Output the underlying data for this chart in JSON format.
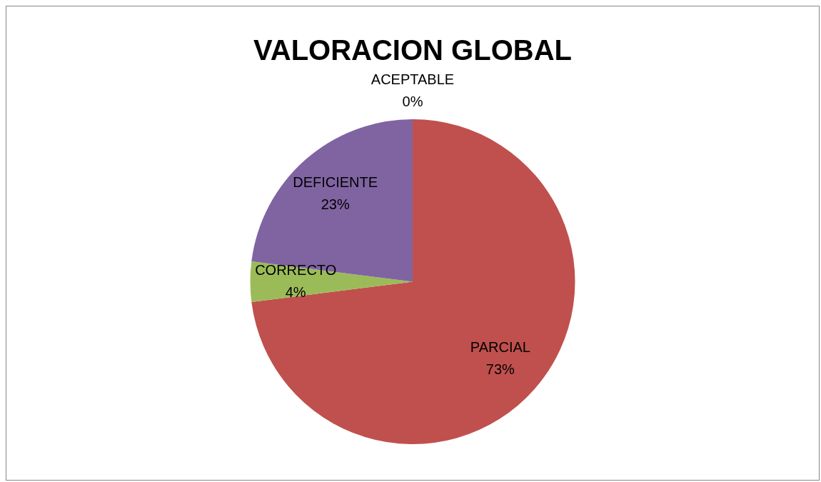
{
  "chart_data": {
    "type": "pie",
    "title": "VALORACION GLOBAL",
    "categories": [
      "ACEPTABLE",
      "PARCIAL",
      "CORRECTO",
      "DEFICIENTE"
    ],
    "values": [
      0,
      73,
      4,
      23
    ],
    "value_labels": [
      "0%",
      "73%",
      "4%",
      "23%"
    ],
    "colors": [
      "#4f81bd",
      "#c0504d",
      "#9bbb59",
      "#8064a2"
    ],
    "legend": false
  }
}
